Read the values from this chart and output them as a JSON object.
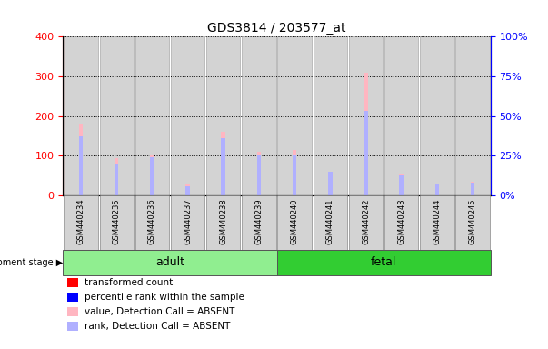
{
  "title": "GDS3814 / 203577_at",
  "samples": [
    "GSM440234",
    "GSM440235",
    "GSM440236",
    "GSM440237",
    "GSM440238",
    "GSM440239",
    "GSM440240",
    "GSM440241",
    "GSM440242",
    "GSM440243",
    "GSM440244",
    "GSM440245"
  ],
  "absent_value": [
    180,
    95,
    100,
    28,
    160,
    110,
    115,
    60,
    310,
    55,
    30,
    35
  ],
  "absent_rank": [
    37,
    20,
    24,
    6,
    36,
    25,
    26,
    15,
    53,
    13,
    7,
    8
  ],
  "groups": [
    {
      "label": "adult",
      "start": 0,
      "end": 6,
      "color": "#90ee90"
    },
    {
      "label": "fetal",
      "start": 6,
      "end": 12,
      "color": "#32cd32"
    }
  ],
  "ylim_left": [
    0,
    400
  ],
  "ylim_right": [
    0,
    100
  ],
  "yticks_left": [
    0,
    100,
    200,
    300,
    400
  ],
  "yticks_right": [
    0,
    25,
    50,
    75,
    100
  ],
  "color_red": "#ff0000",
  "color_blue": "#0000ff",
  "color_pink": "#ffb6c1",
  "color_lightblue": "#b0b0ff",
  "color_bar_bg": "#d3d3d3",
  "figsize": [
    6.03,
    3.84
  ],
  "dpi": 100
}
